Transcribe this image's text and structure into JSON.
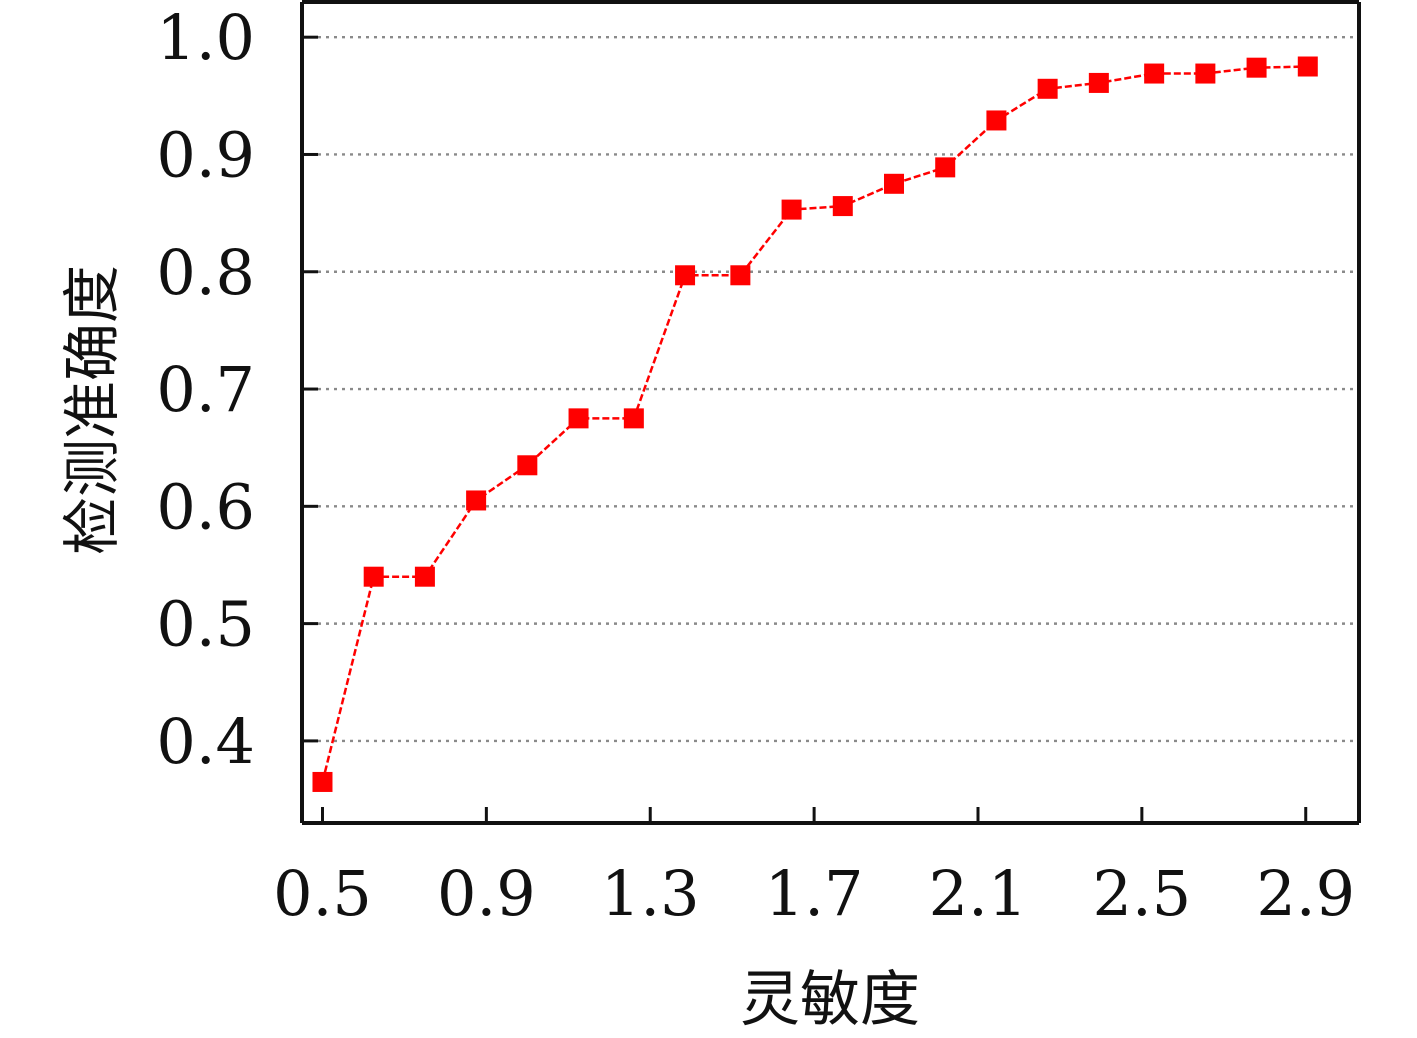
{
  "chart_data": {
    "type": "line",
    "title": "",
    "xlabel": "灵敏度",
    "ylabel": "检测准确度",
    "xlim": [
      0.45,
      3.03
    ],
    "ylim": [
      0.33,
      1.03
    ],
    "x_ticks": [
      0.5,
      0.9,
      1.3,
      1.7,
      2.1,
      2.5,
      2.9
    ],
    "x_tick_labels": [
      "0.5",
      "0.9",
      "1.3",
      "1.7",
      "2.1",
      "2.5",
      "2.9"
    ],
    "y_ticks": [
      0.4,
      0.5,
      0.6,
      0.7,
      0.8,
      0.9,
      1.0
    ],
    "y_tick_labels": [
      "0.4",
      "0.5",
      "0.6",
      "0.7",
      "0.8",
      "0.9",
      "1.0"
    ],
    "grid": {
      "y": true,
      "x": false,
      "style": "dotted",
      "color": "#8a8a8a"
    },
    "legend": "none",
    "series": [
      {
        "color": "#ff0000",
        "line_style": "dashed",
        "marker": "square",
        "x": [
          0.5,
          0.625,
          0.75,
          0.875,
          1.0,
          1.125,
          1.26,
          1.385,
          1.52,
          1.645,
          1.77,
          1.895,
          2.02,
          2.145,
          2.27,
          2.395,
          2.53,
          2.655,
          2.78,
          2.905
        ],
        "y": [
          0.365,
          0.54,
          0.54,
          0.605,
          0.635,
          0.675,
          0.675,
          0.797,
          0.797,
          0.853,
          0.856,
          0.875,
          0.889,
          0.929,
          0.956,
          0.961,
          0.969,
          0.969,
          0.974,
          0.975
        ]
      }
    ]
  }
}
